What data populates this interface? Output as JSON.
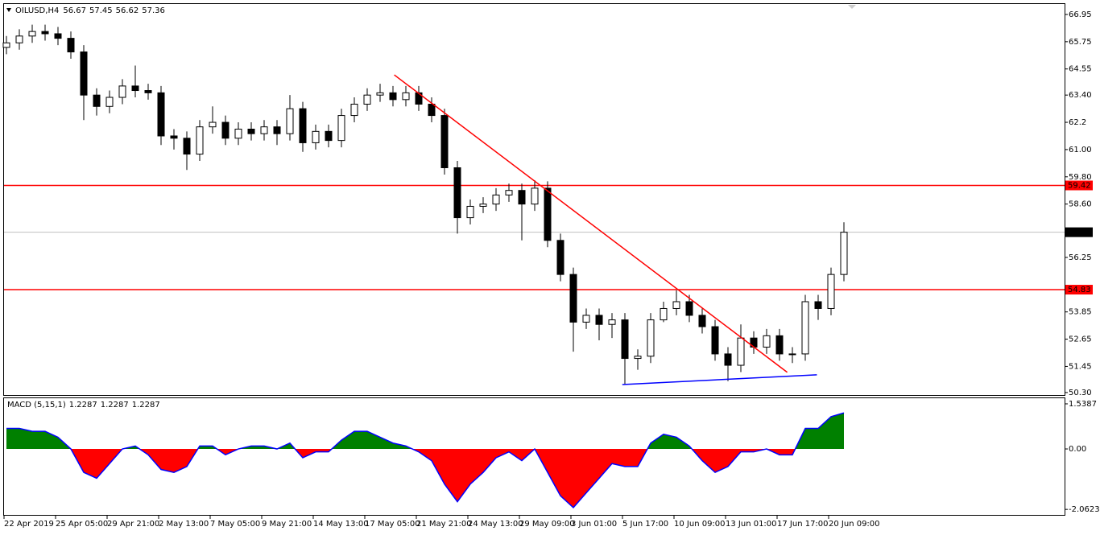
{
  "chart_data": [
    {
      "type": "candlestick",
      "title": "OILUSD,H4",
      "ohlc_header": [
        56.67,
        57.45,
        56.62,
        57.36
      ],
      "categories": [
        "22 Apr 2019",
        null,
        null,
        null,
        "25 Apr 05:00",
        null,
        null,
        null,
        "29 Apr 21:00",
        null,
        null,
        null,
        "2 May 13:00",
        null,
        null,
        null,
        "7 May 05:00",
        null,
        null,
        null,
        "9 May 21:00",
        null,
        null,
        null,
        "14 May 13:00",
        null,
        null,
        null,
        "17 May 05:00",
        null,
        null,
        null,
        "21 May 21:00",
        null,
        null,
        null,
        "24 May 13:00",
        null,
        null,
        null,
        "29 May 09:00",
        null,
        null,
        null,
        "3 Jun 01:00",
        null,
        null,
        null,
        "5 Jun 17:00",
        null,
        null,
        null,
        "10 Jun 09:00",
        null,
        null,
        null,
        "13 Jun 01:00",
        null,
        null,
        null,
        "17 Jun 17:00",
        null,
        null,
        null,
        "20 Jun 09:00",
        null
      ],
      "open": [
        65.5,
        65.7,
        66.0,
        66.2,
        66.1,
        65.9,
        65.3,
        63.4,
        62.9,
        63.3,
        63.8,
        63.6,
        63.5,
        61.6,
        61.5,
        60.8,
        62.0,
        62.2,
        61.5,
        61.9,
        61.7,
        62.0,
        61.7,
        62.8,
        61.3,
        61.8,
        61.4,
        62.5,
        63.0,
        63.4,
        63.5,
        63.2,
        63.5,
        63.0,
        62.5,
        60.2,
        58.0,
        58.5,
        58.6,
        59.0,
        59.2,
        58.6,
        59.3,
        57.0,
        55.5,
        53.4,
        53.7,
        53.3,
        53.5,
        51.8,
        51.9,
        53.5,
        54.0,
        54.3,
        53.7,
        53.2,
        52.0,
        51.5,
        52.7,
        52.3,
        52.8,
        52.0,
        52.0,
        54.3,
        54.0,
        55.5
      ],
      "high": [
        66.0,
        66.3,
        66.5,
        66.5,
        66.4,
        66.2,
        65.6,
        63.7,
        63.6,
        64.1,
        64.7,
        63.9,
        63.8,
        61.9,
        61.8,
        62.3,
        62.9,
        62.5,
        62.2,
        62.2,
        62.3,
        62.3,
        63.4,
        63.1,
        62.1,
        62.1,
        62.8,
        63.3,
        63.7,
        63.9,
        63.8,
        63.8,
        63.8,
        63.3,
        62.8,
        60.5,
        58.8,
        58.9,
        59.3,
        59.5,
        59.5,
        59.65,
        59.6,
        57.3,
        55.8,
        54.0,
        54.0,
        53.8,
        53.8,
        52.2,
        53.8,
        54.3,
        54.8,
        54.6,
        54.0,
        53.5,
        52.3,
        53.3,
        53.0,
        53.1,
        53.1,
        52.3,
        54.6,
        54.6,
        55.8,
        57.8
      ],
      "low": [
        65.2,
        65.4,
        65.7,
        65.8,
        65.6,
        65.0,
        62.3,
        62.5,
        62.6,
        63.0,
        63.3,
        63.2,
        61.2,
        61.0,
        60.1,
        60.5,
        61.7,
        61.2,
        61.2,
        61.4,
        61.4,
        61.2,
        61.4,
        60.9,
        61.0,
        61.1,
        61.1,
        62.2,
        62.7,
        63.1,
        62.9,
        62.9,
        62.7,
        62.2,
        59.9,
        57.3,
        57.7,
        58.2,
        58.3,
        58.7,
        57.0,
        58.3,
        56.7,
        55.2,
        52.1,
        53.1,
        52.6,
        52.7,
        50.65,
        51.3,
        51.6,
        53.4,
        53.7,
        53.4,
        52.9,
        51.7,
        50.8,
        51.2,
        52.0,
        52.0,
        51.7,
        51.6,
        51.7,
        53.5,
        53.7,
        55.2
      ],
      "close": [
        65.7,
        66.0,
        66.2,
        66.1,
        65.9,
        65.3,
        63.4,
        62.9,
        63.3,
        63.8,
        63.6,
        63.5,
        61.6,
        61.5,
        60.8,
        62.0,
        62.2,
        61.5,
        61.9,
        61.7,
        62.0,
        61.7,
        62.8,
        61.3,
        61.8,
        61.4,
        62.5,
        63.0,
        63.4,
        63.5,
        63.2,
        63.5,
        63.0,
        62.5,
        60.2,
        58.0,
        58.5,
        58.6,
        59.0,
        59.2,
        58.6,
        59.3,
        57.0,
        55.5,
        53.4,
        53.7,
        53.3,
        53.5,
        51.8,
        51.9,
        53.5,
        54.0,
        54.3,
        53.7,
        53.2,
        52.0,
        51.5,
        52.7,
        52.3,
        52.8,
        52.0,
        52.0,
        54.3,
        54.0,
        55.5,
        57.36
      ],
      "ylim": [
        50.19,
        67.41
      ],
      "yticks": [
        66.95,
        65.75,
        64.55,
        {
          "value": 63.4,
          "label": "63.40"
        },
        62.2,
        {
          "value": 61,
          "label": "61.00"
        },
        {
          "value": 59.8,
          "label": "59.80"
        },
        {
          "value": 58.6,
          "label": "58.60"
        },
        56.25,
        53.85,
        52.65,
        51.45,
        {
          "value": 50.3,
          "label": "50.30"
        }
      ],
      "levels": [
        {
          "value": 59.42,
          "color": "#ff0000"
        },
        {
          "value": 54.83,
          "color": "#ff0000"
        }
      ],
      "trendlines": [
        {
          "color": "#ff0000",
          "values": [
            64.29,
            51.19
          ]
        },
        {
          "color": "#0000ff",
          "values": [
            50.65,
            51.08
          ]
        }
      ],
      "up_color": "#ffffff",
      "down_color": "#000000",
      "price_line_color": "#c0c0c0"
    },
    {
      "type": "area",
      "title": "MACD (5,15,1)",
      "header_values": [
        1.2287,
        1.2287,
        1.2287
      ],
      "values": [
        0.7,
        0.7,
        0.6,
        0.6,
        0.4,
        0.0,
        -0.8,
        -1.0,
        -0.5,
        0.0,
        0.1,
        -0.2,
        -0.7,
        -0.8,
        -0.6,
        0.1,
        0.1,
        -0.2,
        0.0,
        0.1,
        0.1,
        0.0,
        0.2,
        -0.3,
        -0.1,
        -0.1,
        0.3,
        0.6,
        0.6,
        0.4,
        0.2,
        0.1,
        -0.1,
        -0.4,
        -1.2,
        -1.8,
        -1.2,
        -0.8,
        -0.3,
        -0.1,
        -0.4,
        0.0,
        -0.8,
        -1.6,
        -2.0,
        -1.5,
        -1.0,
        -0.5,
        -0.6,
        -0.6,
        0.2,
        0.5,
        0.4,
        0.1,
        -0.4,
        -0.8,
        -0.6,
        -0.1,
        -0.1,
        0.0,
        -0.2,
        -0.2,
        0.7,
        0.7,
        1.1,
        1.2287
      ],
      "ylim": [
        -2.25,
        1.73
      ],
      "yticks": [
        1.5387,
        {
          "value": 0,
          "label": "0.00"
        },
        -2.0623
      ],
      "pos_color": "#008000",
      "neg_color": "#ff0000",
      "line_color": "#0000ff"
    }
  ]
}
